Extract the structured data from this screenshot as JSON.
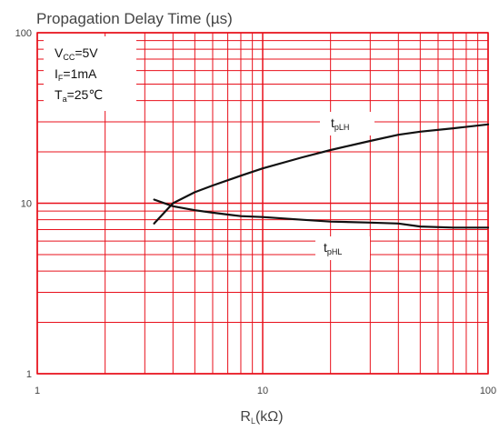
{
  "chart_data": {
    "type": "line",
    "title": "Propagation Delay Time (µs)",
    "xlabel": {
      "main": "R",
      "sub": "L",
      "rest": "(kΩ)"
    },
    "ylabel": "",
    "x_scale": "log",
    "y_scale": "log",
    "xlim": [
      1,
      100
    ],
    "ylim": [
      1,
      100
    ],
    "x_ticks": [
      {
        "value": 1,
        "label": "1"
      },
      {
        "value": 10,
        "label": "10"
      },
      {
        "value": 100,
        "label": "100"
      }
    ],
    "y_ticks": [
      {
        "value": 1,
        "label": "1"
      },
      {
        "value": 10,
        "label": "10"
      },
      {
        "value": 100,
        "label": "100"
      }
    ],
    "grid": true,
    "grid_color": "#e8101b",
    "line_color": "#111111",
    "conditions": [
      {
        "main": "V",
        "sub": "CC",
        "rest": "=5V"
      },
      {
        "main": "I",
        "sub": "F",
        "rest": "=1mA"
      },
      {
        "main": "T",
        "sub": "a",
        "rest": "=25℃"
      }
    ],
    "series": [
      {
        "label": {
          "main": "t",
          "sub": "pLH"
        },
        "x": [
          3.3,
          4,
          5,
          6,
          8,
          10,
          15,
          20,
          30,
          40,
          50,
          70,
          100
        ],
        "y": [
          7.6,
          10,
          11.6,
          12.7,
          14.5,
          16,
          18.6,
          20.5,
          23.2,
          25.2,
          26.3,
          27.5,
          29
        ]
      },
      {
        "label": {
          "main": "t",
          "sub": "pHL"
        },
        "x": [
          3.3,
          4,
          5,
          6,
          8,
          10,
          15,
          20,
          30,
          40,
          50,
          70,
          100
        ],
        "y": [
          10.5,
          9.6,
          9.1,
          8.8,
          8.4,
          8.3,
          8,
          7.8,
          7.7,
          7.6,
          7.3,
          7.2,
          7.2
        ]
      }
    ]
  }
}
